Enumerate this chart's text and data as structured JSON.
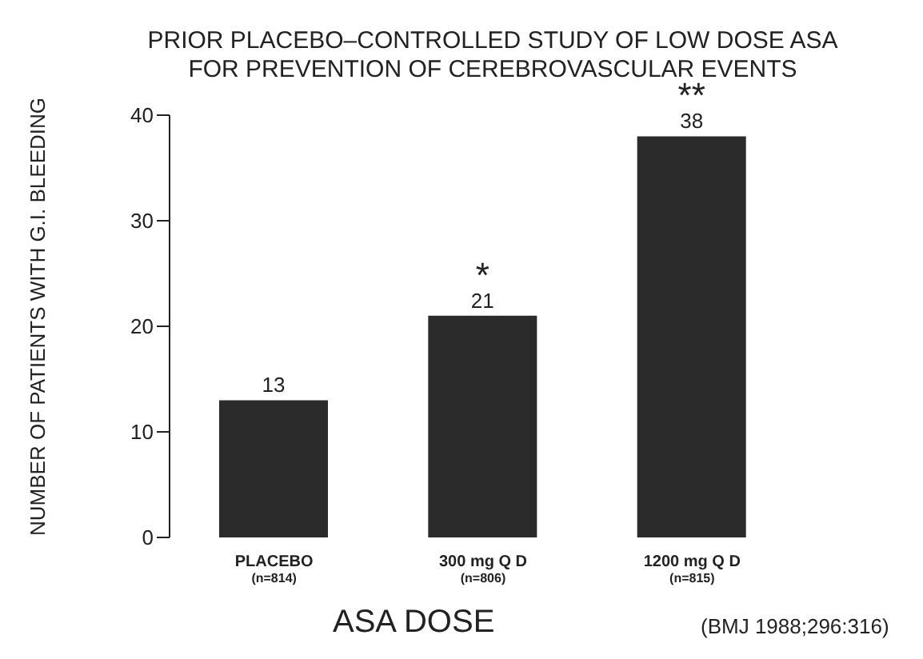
{
  "chart_data": {
    "type": "bar",
    "title": "PRIOR PLACEBO–CONTROLLED STUDY OF LOW DOSE ASA\nFOR PREVENTION OF CEREBROVASCULAR EVENTS",
    "xlabel": "ASA DOSE",
    "ylabel": "NUMBER OF PATIENTS WITH G.I. BLEEDING",
    "categories": [
      "PLACEBO\n(n=814)",
      "300 mg Q D\n(n=806)",
      "1200 mg Q D\n(n=815)"
    ],
    "values": [
      13,
      21,
      38
    ],
    "color": "#2b2b2b",
    "data_labels": true,
    "ylim": [
      0,
      40
    ],
    "yticks": [
      0,
      10,
      20,
      30,
      40
    ],
    "grid": false,
    "legend": false,
    "annotations": [
      {
        "text": "*",
        "x": "300 mg Q D\n(n=806)",
        "y": 21
      },
      {
        "text": "**",
        "x": "1200 mg Q D\n(n=815)",
        "y": 38
      },
      "(BMJ 1988;296:316)"
    ]
  }
}
